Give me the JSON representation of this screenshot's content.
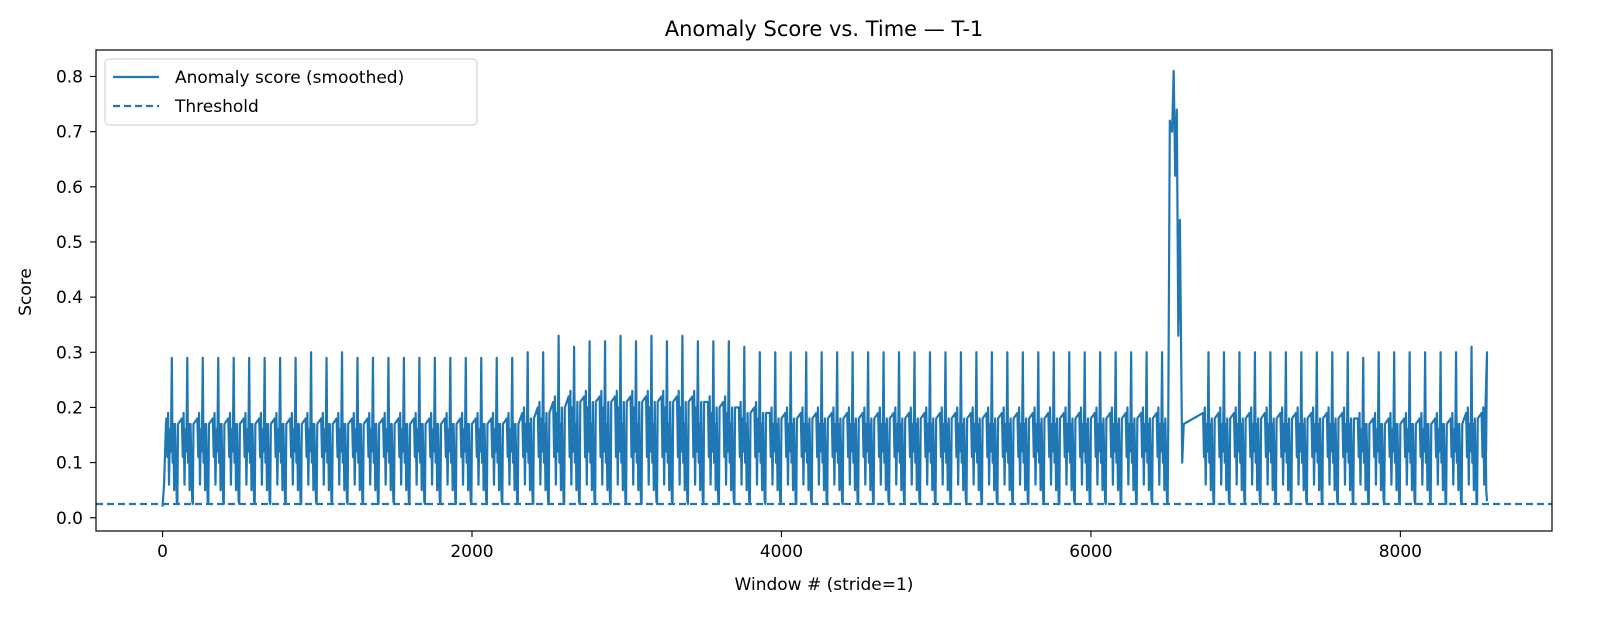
{
  "chart_data": {
    "type": "line",
    "title": "Anomaly Score vs. Time — T-1",
    "xlabel": "Window # (stride=1)",
    "ylabel": "Score",
    "xlim": [
      -430,
      8980
    ],
    "ylim": [
      -0.024,
      0.848
    ],
    "xticks": [
      0,
      2000,
      4000,
      6000,
      8000
    ],
    "xtick_labels": [
      "0",
      "2000",
      "4000",
      "6000",
      "8000"
    ],
    "yticks": [
      0.0,
      0.1,
      0.2,
      0.3,
      0.4,
      0.5,
      0.6,
      0.7,
      0.8
    ],
    "ytick_labels": [
      "0.0",
      "0.1",
      "0.2",
      "0.3",
      "0.4",
      "0.5",
      "0.6",
      "0.7",
      "0.8"
    ],
    "grid": false,
    "legend_position": "top-left",
    "colors": {
      "series": "#1f77b4"
    },
    "series": [
      {
        "name": "Anomaly score (smoothed)",
        "style": "solid",
        "x_start": 0,
        "x_end": 8560,
        "cycle_period": 100,
        "cycle_peaks": [
          0.29,
          0.29,
          0.29,
          0.29,
          0.29,
          0.29,
          0.29,
          0.29,
          0.29,
          0.3,
          0.29,
          0.3,
          0.29,
          0.29,
          0.29,
          0.29,
          0.29,
          0.29,
          0.29,
          0.29,
          0.29,
          0.29,
          0.29,
          0.3,
          0.3,
          0.33,
          0.31,
          0.32,
          0.32,
          0.33,
          0.32,
          0.33,
          0.32,
          0.33,
          0.32,
          0.32,
          0.32,
          0.31,
          0.3,
          0.3,
          0.3,
          0.3,
          0.3,
          0.3,
          0.3,
          0.3,
          0.3,
          0.3,
          0.3,
          0.3,
          0.3,
          0.3,
          0.3,
          0.3,
          0.3,
          0.3,
          0.3,
          0.3,
          0.3,
          0.3,
          0.3,
          0.3,
          0.3,
          0.3,
          0.3,
          0.3,
          0.3,
          0.3,
          0.3,
          0.3,
          0.3,
          0.3,
          0.3,
          0.3,
          0.3,
          0.3,
          0.3,
          0.29,
          0.3,
          0.3,
          0.3,
          0.3,
          0.3,
          0.3,
          0.31,
          0.3
        ],
        "cycle_mid": [
          0.19,
          0.19,
          0.19,
          0.19,
          0.19,
          0.19,
          0.19,
          0.19,
          0.19,
          0.19,
          0.19,
          0.19,
          0.19,
          0.19,
          0.19,
          0.19,
          0.19,
          0.19,
          0.19,
          0.19,
          0.19,
          0.19,
          0.19,
          0.2,
          0.21,
          0.22,
          0.23,
          0.23,
          0.23,
          0.23,
          0.23,
          0.23,
          0.23,
          0.23,
          0.23,
          0.22,
          0.22,
          0.21,
          0.21,
          0.2,
          0.2,
          0.2,
          0.2,
          0.2,
          0.2,
          0.2,
          0.2,
          0.2,
          0.2,
          0.2,
          0.2,
          0.2,
          0.2,
          0.2,
          0.2,
          0.2,
          0.2,
          0.2,
          0.2,
          0.2,
          0.2,
          0.2,
          0.2,
          0.2,
          0.2,
          0.2,
          0.2,
          0.2,
          0.2,
          0.2,
          0.2,
          0.2,
          0.2,
          0.2,
          0.2,
          0.2,
          0.2,
          0.19,
          0.19,
          0.19,
          0.19,
          0.19,
          0.19,
          0.19,
          0.2,
          0.2
        ],
        "baseline": 0.025,
        "anomaly": {
          "x": [
            6510,
            6525,
            6535,
            6545,
            6555,
            6565,
            6575,
            6590,
            6600
          ],
          "y": [
            0.72,
            0.7,
            0.81,
            0.62,
            0.74,
            0.33,
            0.54,
            0.1,
            0.17
          ]
        }
      },
      {
        "name": "Threshold",
        "style": "dashed",
        "value": 0.025
      }
    ]
  }
}
